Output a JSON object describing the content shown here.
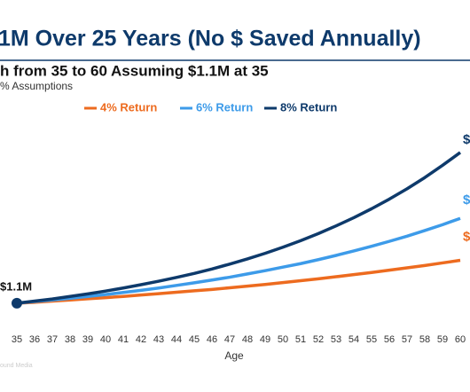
{
  "chart_data": {
    "type": "line",
    "title": "1M Over 25 Years (No $ Saved Annually)",
    "subtitle": "h from 35 to 60 Assuming $1.1M at 35",
    "note": "% Assumptions",
    "x_label": "Age",
    "start_label": "$1.1M",
    "watermark": "ound Media",
    "x": [
      35,
      36,
      37,
      38,
      39,
      40,
      41,
      42,
      43,
      44,
      45,
      46,
      47,
      48,
      49,
      50,
      51,
      52,
      53,
      54,
      55,
      56,
      57,
      58,
      59,
      60
    ],
    "xlim": [
      35,
      60
    ],
    "ylim": [
      0,
      8
    ],
    "legend": "top",
    "series": [
      {
        "name": "4% Return",
        "color": "#ed6b1f",
        "end_label": "$",
        "values": [
          1.1,
          1.14,
          1.19,
          1.24,
          1.29,
          1.34,
          1.39,
          1.45,
          1.51,
          1.57,
          1.63,
          1.69,
          1.76,
          1.83,
          1.9,
          1.98,
          2.06,
          2.14,
          2.23,
          2.32,
          2.41,
          2.51,
          2.61,
          2.71,
          2.82,
          2.93
        ]
      },
      {
        "name": "6% Return",
        "color": "#3d9be9",
        "end_label": "$",
        "values": [
          1.1,
          1.17,
          1.24,
          1.31,
          1.39,
          1.47,
          1.56,
          1.65,
          1.75,
          1.86,
          1.97,
          2.09,
          2.21,
          2.35,
          2.49,
          2.64,
          2.79,
          2.96,
          3.14,
          3.33,
          3.53,
          3.74,
          3.96,
          4.2,
          4.45,
          4.72
        ]
      },
      {
        "name": "8% Return",
        "color": "#0e3a6b",
        "end_label": "$",
        "values": [
          1.1,
          1.19,
          1.28,
          1.39,
          1.5,
          1.62,
          1.75,
          1.89,
          2.04,
          2.2,
          2.37,
          2.56,
          2.77,
          2.99,
          3.23,
          3.49,
          3.77,
          4.07,
          4.4,
          4.75,
          5.13,
          5.54,
          5.98,
          6.46,
          6.98,
          7.53
        ]
      }
    ]
  }
}
